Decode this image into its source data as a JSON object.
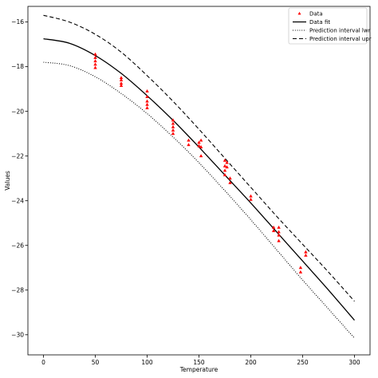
{
  "chart_data": {
    "type": "scatter",
    "xlabel": "Temperature",
    "ylabel": "Values",
    "xlim": [
      -15,
      315
    ],
    "ylim": [
      -30.9,
      -15.3
    ],
    "x_ticks": [
      0,
      50,
      100,
      150,
      200,
      250,
      300
    ],
    "x_tick_labels": [
      "0",
      "50",
      "100",
      "150",
      "200",
      "250",
      "300"
    ],
    "y_ticks": [
      -16,
      -18,
      -20,
      -22,
      -24,
      -26,
      -28,
      -30
    ],
    "y_tick_labels": [
      "−16",
      "−18",
      "−20",
      "−22",
      "−24",
      "−26",
      "−28",
      "−30"
    ],
    "grid": false,
    "legend_position": "top-right",
    "legend": [
      "Data",
      "Data fit",
      "Prediction interval lwr",
      "Prediction interval upr"
    ],
    "colors": {
      "data": "#ff0000",
      "fit": "#000000",
      "lwr": "#000000",
      "upr": "#000000"
    },
    "series": [
      {
        "name": "Data",
        "kind": "markers",
        "marker": "triangle",
        "points": [
          {
            "x": 50,
            "y": -17.45
          },
          {
            "x": 50,
            "y": -17.6
          },
          {
            "x": 50,
            "y": -17.75
          },
          {
            "x": 50,
            "y": -17.9
          },
          {
            "x": 50,
            "y": -18.05
          },
          {
            "x": 75,
            "y": -18.5
          },
          {
            "x": 75,
            "y": -18.6
          },
          {
            "x": 75,
            "y": -18.75
          },
          {
            "x": 75,
            "y": -18.85
          },
          {
            "x": 100,
            "y": -19.1
          },
          {
            "x": 100,
            "y": -19.35
          },
          {
            "x": 100,
            "y": -19.55
          },
          {
            "x": 100,
            "y": -19.7
          },
          {
            "x": 100,
            "y": -19.85
          },
          {
            "x": 125,
            "y": -20.4
          },
          {
            "x": 125,
            "y": -20.55
          },
          {
            "x": 125,
            "y": -20.7
          },
          {
            "x": 125,
            "y": -20.85
          },
          {
            "x": 125,
            "y": -21.0
          },
          {
            "x": 140,
            "y": -21.3
          },
          {
            "x": 140,
            "y": -21.5
          },
          {
            "x": 150,
            "y": -21.4
          },
          {
            "x": 150,
            "y": -21.55
          },
          {
            "x": 152,
            "y": -21.3
          },
          {
            "x": 152,
            "y": -21.6
          },
          {
            "x": 152,
            "y": -22.0
          },
          {
            "x": 175,
            "y": -22.2
          },
          {
            "x": 175,
            "y": -22.45
          },
          {
            "x": 175,
            "y": -22.65
          },
          {
            "x": 175,
            "y": -22.85
          },
          {
            "x": 177,
            "y": -22.3
          },
          {
            "x": 177,
            "y": -22.5
          },
          {
            "x": 180,
            "y": -23.0
          },
          {
            "x": 180,
            "y": -23.2
          },
          {
            "x": 200,
            "y": -23.8
          },
          {
            "x": 200,
            "y": -23.95
          },
          {
            "x": 222,
            "y": -25.2
          },
          {
            "x": 222,
            "y": -25.35
          },
          {
            "x": 227,
            "y": -25.2
          },
          {
            "x": 227,
            "y": -25.4
          },
          {
            "x": 227,
            "y": -25.55
          },
          {
            "x": 227,
            "y": -25.8
          },
          {
            "x": 248,
            "y": -27.0
          },
          {
            "x": 248,
            "y": -27.2
          },
          {
            "x": 253,
            "y": -26.3
          },
          {
            "x": 253,
            "y": -26.45
          }
        ]
      },
      {
        "name": "Data fit",
        "kind": "line",
        "style": "solid",
        "x": [
          0,
          25,
          50,
          75,
          100,
          125,
          150,
          175,
          200,
          225,
          250,
          275,
          300
        ],
        "y": [
          -16.75,
          -16.95,
          -17.5,
          -18.3,
          -19.3,
          -20.4,
          -21.6,
          -22.85,
          -24.1,
          -25.4,
          -26.7,
          -28.0,
          -29.35
        ]
      },
      {
        "name": "Prediction interval lwr",
        "kind": "line",
        "style": "dotted",
        "x": [
          0,
          25,
          50,
          75,
          100,
          125,
          150,
          175,
          200,
          225,
          250,
          275,
          300
        ],
        "y": [
          -17.8,
          -17.95,
          -18.45,
          -19.2,
          -20.1,
          -21.15,
          -22.3,
          -23.55,
          -24.85,
          -26.2,
          -27.55,
          -28.85,
          -30.15
        ]
      },
      {
        "name": "Prediction interval upr",
        "kind": "line",
        "style": "dashed",
        "x": [
          0,
          25,
          50,
          75,
          100,
          125,
          150,
          175,
          200,
          225,
          250,
          275,
          300
        ],
        "y": [
          -15.7,
          -16.0,
          -16.55,
          -17.35,
          -18.4,
          -19.55,
          -20.8,
          -22.1,
          -23.4,
          -24.7,
          -25.95,
          -27.2,
          -28.5
        ]
      }
    ]
  }
}
